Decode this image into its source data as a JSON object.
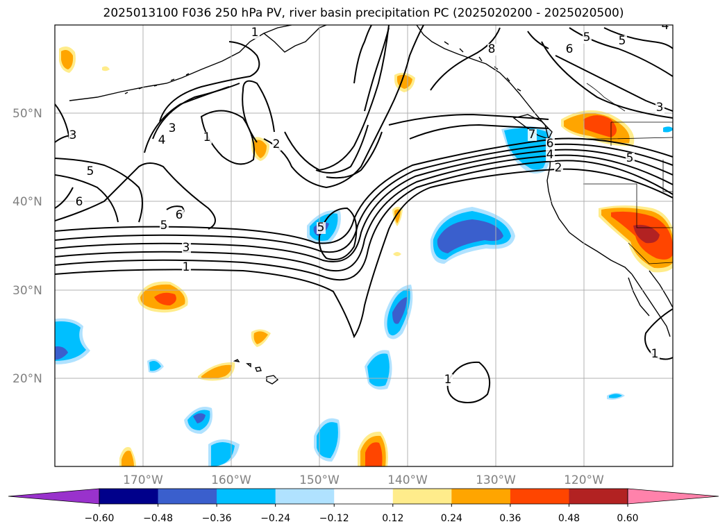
{
  "title": "2025013100 F036 250 hPa PV, river basin precipitation PC (2025020200 - 2025020500)",
  "map": {
    "lat_labels": [
      "50°N",
      "40°N",
      "30°N",
      "20°N"
    ],
    "lon_labels": [
      "170°W",
      "160°W",
      "150°W",
      "140°W",
      "130°W",
      "120°W"
    ],
    "gridline_color": "#b0b0b0",
    "contour_color": "#000000"
  },
  "pv_contour_labels": [
    "1",
    "3",
    "4",
    "5",
    "6",
    "2",
    "1",
    "3",
    "5",
    "1",
    "3",
    "5",
    "6",
    "5",
    "7",
    "6",
    "4",
    "2",
    "5",
    "8",
    "6",
    "5",
    "4",
    "3",
    "1",
    "1"
  ],
  "colorbar": {
    "ticks": [
      "−0.60",
      "−0.48",
      "−0.36",
      "−0.24",
      "−0.12",
      "0.12",
      "0.24",
      "0.36",
      "0.48",
      "0.60"
    ],
    "colors": [
      "#9932cc",
      "#00008b",
      "#3a5fcd",
      "#00bfff",
      "#b0e2ff",
      "#ffffff",
      "#ffec8b",
      "#ffa500",
      "#ff4500",
      "#b22222",
      "#ff82ab"
    ]
  }
}
